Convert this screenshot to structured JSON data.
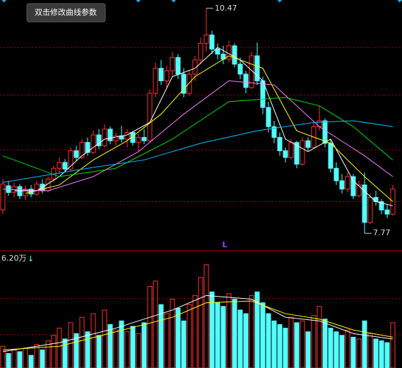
{
  "chart_data": {
    "type": "candlestick",
    "tooltip": "双击修改曲线参数",
    "ylim": [
      7.56,
      10.57
    ],
    "ygrid": [
      10.0,
      9.43,
      8.77,
      8.15
    ],
    "high_label": 10.47,
    "low_label": 7.77,
    "marker": "L",
    "candles": [
      [
        8.05,
        8.42,
        8.0,
        8.36
      ],
      [
        8.34,
        8.4,
        8.22,
        8.26
      ],
      [
        8.26,
        8.38,
        8.2,
        8.33
      ],
      [
        8.33,
        8.36,
        8.18,
        8.22
      ],
      [
        8.22,
        8.34,
        8.17,
        8.3
      ],
      [
        8.3,
        8.35,
        8.2,
        8.24
      ],
      [
        8.24,
        8.4,
        8.22,
        8.36
      ],
      [
        8.36,
        8.42,
        8.25,
        8.28
      ],
      [
        8.28,
        8.45,
        8.26,
        8.42
      ],
      [
        8.42,
        8.58,
        8.38,
        8.55
      ],
      [
        8.55,
        8.68,
        8.48,
        8.62
      ],
      [
        8.62,
        8.66,
        8.5,
        8.54
      ],
      [
        8.54,
        8.8,
        8.52,
        8.76
      ],
      [
        8.76,
        8.82,
        8.64,
        8.68
      ],
      [
        8.68,
        8.9,
        8.66,
        8.86
      ],
      [
        8.86,
        8.92,
        8.7,
        8.74
      ],
      [
        8.74,
        9.0,
        8.72,
        8.95
      ],
      [
        8.95,
        9.02,
        8.78,
        8.82
      ],
      [
        8.82,
        9.08,
        8.8,
        9.02
      ],
      [
        9.02,
        9.05,
        8.84,
        8.88
      ],
      [
        8.88,
        8.98,
        8.82,
        8.94
      ],
      [
        8.94,
        9.06,
        8.86,
        8.9
      ],
      [
        8.9,
        9.02,
        8.8,
        8.98
      ],
      [
        8.98,
        9.0,
        8.82,
        8.86
      ],
      [
        8.86,
        8.96,
        8.76,
        8.92
      ],
      [
        8.92,
        9.02,
        8.84,
        8.88
      ],
      [
        8.88,
        9.5,
        8.86,
        9.45
      ],
      [
        9.45,
        9.82,
        9.4,
        9.75
      ],
      [
        9.75,
        9.85,
        9.55,
        9.6
      ],
      [
        9.6,
        9.78,
        9.5,
        9.72
      ],
      [
        9.72,
        9.95,
        9.65,
        9.88
      ],
      [
        9.88,
        9.92,
        9.62,
        9.68
      ],
      [
        9.68,
        9.75,
        9.4,
        9.45
      ],
      [
        9.45,
        9.72,
        9.42,
        9.68
      ],
      [
        9.68,
        9.9,
        9.6,
        9.85
      ],
      [
        9.85,
        10.12,
        9.8,
        10.05
      ],
      [
        10.05,
        10.47,
        9.95,
        10.15
      ],
      [
        10.15,
        10.2,
        9.92,
        9.98
      ],
      [
        9.98,
        10.05,
        9.86,
        9.92
      ],
      [
        9.92,
        10.02,
        9.8,
        9.86
      ],
      [
        9.86,
        10.08,
        9.82,
        10.02
      ],
      [
        10.02,
        10.05,
        9.76,
        9.8
      ],
      [
        9.8,
        9.88,
        9.62,
        9.68
      ],
      [
        9.68,
        9.72,
        9.45,
        9.52
      ],
      [
        9.52,
        9.95,
        9.5,
        9.9
      ],
      [
        9.9,
        10.06,
        9.55,
        9.6
      ],
      [
        9.6,
        9.65,
        9.2,
        9.28
      ],
      [
        9.28,
        9.35,
        8.98,
        9.05
      ],
      [
        9.05,
        9.12,
        8.85,
        8.92
      ],
      [
        8.92,
        8.98,
        8.7,
        8.76
      ],
      [
        8.76,
        8.8,
        8.62,
        8.68
      ],
      [
        8.68,
        8.9,
        8.66,
        8.86
      ],
      [
        8.86,
        8.88,
        8.55,
        8.6
      ],
      [
        8.6,
        8.92,
        8.58,
        8.88
      ],
      [
        8.88,
        8.92,
        8.76,
        8.8
      ],
      [
        8.8,
        9.1,
        8.78,
        9.05
      ],
      [
        9.05,
        9.3,
        9.0,
        9.12
      ],
      [
        9.12,
        9.15,
        8.8,
        8.85
      ],
      [
        8.85,
        8.9,
        8.5,
        8.55
      ],
      [
        8.55,
        8.62,
        8.35,
        8.4
      ],
      [
        8.4,
        8.48,
        8.25,
        8.3
      ],
      [
        8.3,
        8.5,
        8.26,
        8.45
      ],
      [
        8.45,
        8.48,
        8.18,
        8.22
      ],
      [
        8.22,
        8.4,
        8.2,
        8.35
      ],
      [
        8.35,
        8.5,
        7.77,
        7.9
      ],
      [
        7.9,
        8.25,
        7.88,
        8.2
      ],
      [
        8.2,
        8.28,
        8.1,
        8.15
      ],
      [
        8.15,
        8.18,
        8.0,
        8.05
      ],
      [
        8.05,
        8.12,
        7.95,
        8.0
      ],
      [
        8.0,
        8.35,
        7.98,
        8.3
      ]
    ],
    "up_color": "#ff3232",
    "down_color": "#54ffff",
    "ma_lines": [
      {
        "color": "#ffffff",
        "x": [
          2,
          6,
          10,
          14,
          18,
          22,
          26,
          30,
          34,
          38,
          42,
          46,
          50,
          54,
          58,
          62,
          66,
          69
        ],
        "values": [
          8.28,
          8.28,
          8.45,
          8.7,
          8.9,
          8.95,
          9.1,
          9.65,
          9.75,
          10.0,
          9.85,
          9.6,
          8.9,
          8.75,
          8.9,
          8.4,
          8.15,
          8.1
        ]
      },
      {
        "color": "#ffff00",
        "x": [
          4,
          10,
          16,
          22,
          28,
          34,
          40,
          46,
          52,
          58,
          64,
          69
        ],
        "values": [
          8.25,
          8.35,
          8.65,
          8.88,
          9.2,
          9.65,
          9.9,
          9.75,
          9.0,
          8.85,
          8.45,
          8.15
        ]
      },
      {
        "color": "#ff80ff",
        "x": [
          0,
          8,
          16,
          24,
          32,
          40,
          48,
          56,
          64,
          69
        ],
        "values": [
          8.3,
          8.28,
          8.45,
          8.75,
          9.2,
          9.6,
          9.55,
          9.05,
          8.7,
          8.45
        ]
      },
      {
        "color": "#00e000",
        "x": [
          0,
          10,
          20,
          30,
          40,
          50,
          56,
          62,
          69
        ],
        "values": [
          8.7,
          8.45,
          8.55,
          8.9,
          9.35,
          9.4,
          9.3,
          9.05,
          8.65
        ]
      },
      {
        "color": "#00c0ff",
        "x": [
          0,
          15,
          25,
          35,
          45,
          55,
          62,
          69
        ],
        "values": [
          8.38,
          8.55,
          8.65,
          8.85,
          9.0,
          9.1,
          9.12,
          9.05
        ]
      }
    ],
    "volume_label": "6.20万",
    "volume_arrow": "↓",
    "volume_lim": [
      0,
      6.2
    ],
    "volume_grid": [
      3.83,
      1.84
    ],
    "volume": [
      1.2,
      0.8,
      1.0,
      0.9,
      1.1,
      0.7,
      1.3,
      1.0,
      1.5,
      1.8,
      2.2,
      1.6,
      2.5,
      1.9,
      2.8,
      2.0,
      3.0,
      1.8,
      3.2,
      2.4,
      2.1,
      2.6,
      2.0,
      2.3,
      1.9,
      2.5,
      4.5,
      4.8,
      3.5,
      3.0,
      3.8,
      3.3,
      2.6,
      3.5,
      4.0,
      5.0,
      5.7,
      4.2,
      3.6,
      3.4,
      4.1,
      3.8,
      3.2,
      3.0,
      4.0,
      4.2,
      3.6,
      3.0,
      2.6,
      2.4,
      2.2,
      2.8,
      2.5,
      2.6,
      2.0,
      2.9,
      3.4,
      2.7,
      2.2,
      2.0,
      1.8,
      2.1,
      1.7,
      1.6,
      2.6,
      1.9,
      1.6,
      1.5,
      1.4,
      2.5
    ],
    "volume_ma": [
      {
        "color": "#ffffff",
        "x": [
          0,
          10,
          20,
          30,
          36,
          44,
          50,
          56,
          62,
          69
        ],
        "values": [
          0.9,
          1.4,
          2.2,
          3.2,
          4.0,
          3.8,
          2.8,
          2.6,
          1.9,
          1.6
        ]
      },
      {
        "color": "#ffff00",
        "x": [
          0,
          10,
          20,
          30,
          36,
          44,
          50,
          56,
          62,
          69
        ],
        "values": [
          1.0,
          1.2,
          2.0,
          2.8,
          3.6,
          3.7,
          3.0,
          2.7,
          2.1,
          1.7
        ]
      }
    ]
  }
}
